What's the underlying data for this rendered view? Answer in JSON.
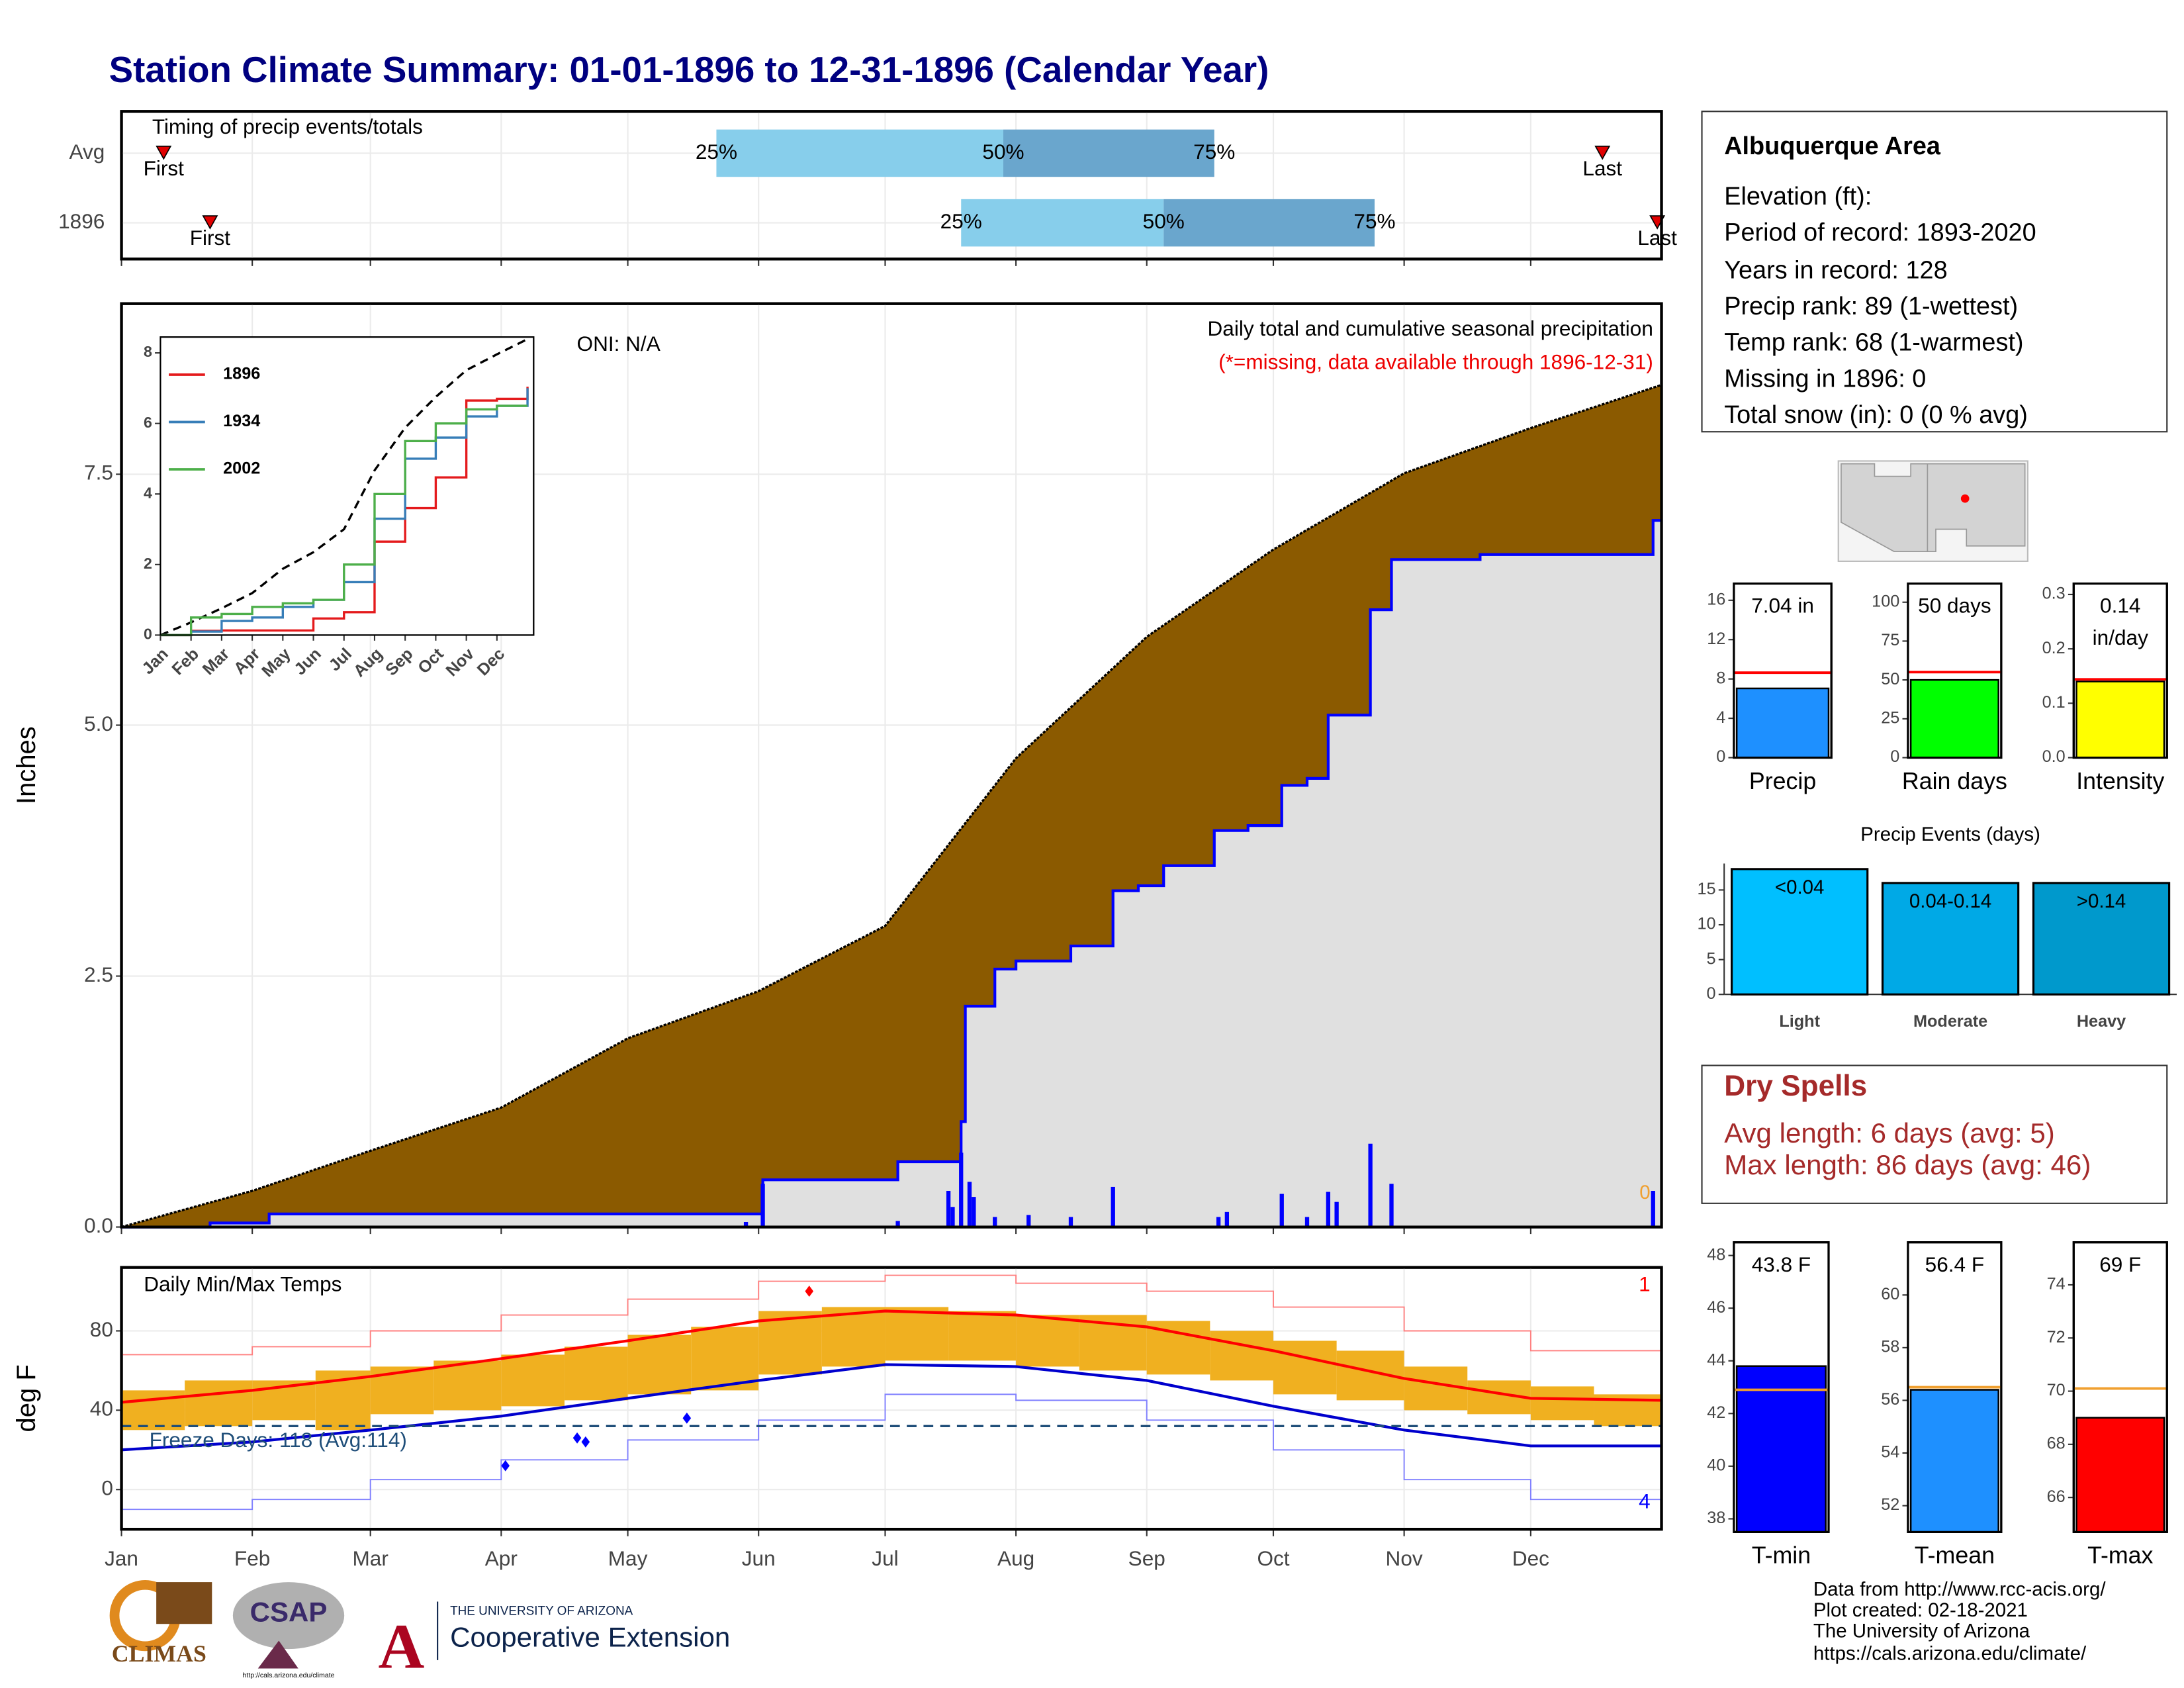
{
  "title": "Station Climate Summary: 01-01-1896 to 12-31-1896 (Calendar Year)",
  "chart_data": [
    {
      "type": "timing",
      "title": "Timing of precip events/totals",
      "xlim": [
        0,
        365
      ],
      "xticks": [
        0,
        31,
        59,
        90,
        120,
        151,
        181,
        212,
        243,
        273,
        304,
        334
      ],
      "marker_labels": [
        "First",
        "25%",
        "50%",
        "75%",
        "Last"
      ],
      "series": [
        {
          "name": "Avg",
          "values": [
            10,
            141,
            209,
            259,
            351
          ]
        },
        {
          "name": "1896",
          "values": [
            21,
            199,
            247,
            297,
            364
          ]
        }
      ],
      "colors": [
        "#87ceeb",
        "#6aa6cd"
      ],
      "marker_color": "#e00000"
    },
    {
      "type": "precip",
      "ylabel": "Inches",
      "xlim": [
        0,
        365
      ],
      "ylim": [
        0,
        9.2
      ],
      "xticks": [
        0,
        31,
        59,
        90,
        120,
        151,
        181,
        212,
        243,
        273,
        304,
        334
      ],
      "yticks": [
        {
          "value": 0,
          "label": "0.0"
        },
        {
          "value": 2.5,
          "label": "2.5"
        },
        {
          "value": 5,
          "label": "5.0"
        },
        {
          "value": 7.5,
          "label": "7.5"
        }
      ],
      "oni": "ONI: N/A",
      "subtitle": "Daily total and cumulative seasonal precipitation",
      "note": "(*=missing, data available through 1896-12-31)",
      "missing_days": 0,
      "average": {
        "x": [
          0,
          31,
          59,
          90,
          120,
          151,
          181,
          212,
          243,
          273,
          304,
          334,
          365
        ],
        "values": [
          0,
          0.36,
          0.76,
          1.19,
          1.88,
          2.35,
          3.0,
          4.67,
          5.88,
          6.75,
          7.51,
          7.96,
          8.39
        ],
        "color": "#8b5a00"
      },
      "cumulative": {
        "x": [
          0,
          21,
          35,
          148,
          152,
          184,
          199,
          200,
          207,
          212,
          225,
          235,
          241,
          247,
          259,
          267,
          273,
          275,
          281,
          286,
          296,
          301,
          322,
          363,
          365
        ],
        "values": [
          0,
          0.04,
          0.13,
          0.13,
          0.47,
          0.65,
          1.05,
          2.2,
          2.57,
          2.65,
          2.8,
          3.35,
          3.4,
          3.6,
          3.95,
          4.0,
          4.0,
          4.4,
          4.47,
          5.1,
          6.15,
          6.65,
          6.7,
          7.04,
          7.04
        ],
        "color": "#0000ff",
        "fill": "#e0e0e0"
      },
      "daily": {
        "x": [
          148,
          152,
          184,
          196,
          197,
          199,
          201,
          202,
          207,
          215,
          225,
          235,
          260,
          262,
          275,
          281,
          286,
          288,
          296,
          301,
          363
        ],
        "values": [
          0.05,
          0.43,
          0.06,
          0.36,
          0.2,
          0.74,
          0.45,
          0.3,
          0.1,
          0.12,
          0.1,
          0.4,
          0.1,
          0.15,
          0.33,
          0.1,
          0.35,
          0.25,
          0.83,
          0.43,
          0.36
        ],
        "color": "#0000ff"
      }
    },
    {
      "type": "line",
      "xlim": [
        0,
        12.2
      ],
      "ylim": [
        0,
        8.45
      ],
      "xticks": [
        {
          "value": 0,
          "label": "Jan"
        },
        {
          "value": 1,
          "label": "Feb"
        },
        {
          "value": 2,
          "label": "Mar"
        },
        {
          "value": 3,
          "label": "Apr"
        },
        {
          "value": 4,
          "label": "May"
        },
        {
          "value": 5,
          "label": "Jun"
        },
        {
          "value": 6,
          "label": "Jul"
        },
        {
          "value": 7,
          "label": "Aug"
        },
        {
          "value": 8,
          "label": "Sep"
        },
        {
          "value": 9,
          "label": "Oct"
        },
        {
          "value": 10,
          "label": "Nov"
        },
        {
          "value": 11,
          "label": "Dec"
        }
      ],
      "yticks": [
        0,
        2,
        4,
        6,
        8
      ],
      "x": [
        0,
        1,
        2,
        3,
        4,
        5,
        6,
        7,
        8,
        9,
        10,
        11,
        12
      ],
      "average": {
        "values": [
          0,
          0.36,
          0.76,
          1.19,
          1.88,
          2.35,
          3.0,
          4.67,
          5.88,
          6.75,
          7.51,
          7.96,
          8.39
        ],
        "color": "#000000"
      },
      "series": [
        {
          "name": "1896",
          "color": "#e41a1c",
          "values": [
            0,
            0.12,
            0.13,
            0.13,
            0.13,
            0.47,
            0.65,
            2.65,
            3.6,
            4.47,
            6.65,
            6.7,
            7.04
          ]
        },
        {
          "name": "1934",
          "color": "#377eb8",
          "values": [
            0,
            0.1,
            0.4,
            0.5,
            0.8,
            1.0,
            1.5,
            3.3,
            5.0,
            5.6,
            6.2,
            6.5,
            7.0
          ]
        },
        {
          "name": "2002",
          "color": "#4daf4a",
          "values": [
            0,
            0.5,
            0.6,
            0.8,
            0.9,
            1.0,
            2.0,
            4.0,
            5.5,
            6.0,
            6.4,
            6.5,
            6.5
          ]
        }
      ]
    },
    {
      "type": "temperature",
      "title": "Daily Min/Max Temps",
      "ylabel": "deg F",
      "xlim": [
        0,
        365
      ],
      "ylim": [
        -20,
        112
      ],
      "yticks": [
        0,
        40,
        80
      ],
      "xticks": [
        {
          "value": 0,
          "label": "Jan"
        },
        {
          "value": 31,
          "label": "Feb"
        },
        {
          "value": 59,
          "label": "Mar"
        },
        {
          "value": 90,
          "label": "Apr"
        },
        {
          "value": 120,
          "label": "May"
        },
        {
          "value": 151,
          "label": "Jun"
        },
        {
          "value": 181,
          "label": "Jul"
        },
        {
          "value": 212,
          "label": "Aug"
        },
        {
          "value": 243,
          "label": "Sep"
        },
        {
          "value": 273,
          "label": "Oct"
        },
        {
          "value": 304,
          "label": "Nov"
        },
        {
          "value": 334,
          "label": "Dec"
        }
      ],
      "x": [
        0,
        31,
        59,
        90,
        120,
        151,
        181,
        212,
        243,
        273,
        304,
        334,
        365
      ],
      "avg_max": {
        "values": [
          44,
          50,
          57,
          66,
          75,
          85,
          90,
          88,
          82,
          70,
          56,
          46,
          45
        ],
        "color": "#ff0000"
      },
      "avg_min": {
        "values": [
          20,
          24,
          30,
          37,
          46,
          55,
          63,
          62,
          55,
          42,
          30,
          22,
          22
        ],
        "color": "#0000cd"
      },
      "record_max": {
        "values": [
          68,
          72,
          80,
          88,
          96,
          105,
          108,
          104,
          100,
          92,
          80,
          70,
          68
        ],
        "color": "#ff8080"
      },
      "record_min": {
        "values": [
          -10,
          -5,
          5,
          15,
          25,
          35,
          48,
          45,
          35,
          20,
          5,
          -5,
          -10
        ],
        "color": "#8080ff"
      },
      "days": [
        0,
        15,
        31,
        46,
        59,
        74,
        90,
        105,
        120,
        135,
        151,
        166,
        181,
        196,
        212,
        227,
        243,
        258,
        273,
        288,
        304,
        319,
        334,
        349
      ],
      "lows": [
        30,
        32,
        35,
        30,
        38,
        40,
        42,
        45,
        48,
        50,
        58,
        62,
        65,
        65,
        62,
        60,
        58,
        55,
        48,
        45,
        40,
        38,
        35,
        32
      ],
      "highs": [
        50,
        55,
        55,
        60,
        62,
        65,
        68,
        72,
        78,
        82,
        90,
        92,
        92,
        90,
        88,
        88,
        85,
        80,
        75,
        70,
        62,
        55,
        52,
        48
      ],
      "bar_color": "#f0b020",
      "freeze_threshold": 32,
      "freeze_label": "Freeze Days: 118 (Avg:114)",
      "freeze_color": "#1f4e79",
      "record_highs": {
        "x": [
          163
        ],
        "values": [
          100
        ]
      },
      "record_lows": {
        "x": [
          91,
          108,
          110,
          134
        ],
        "values": [
          12,
          26,
          24,
          36
        ]
      },
      "record_high_count": 1,
      "record_low_count": 4
    },
    {
      "type": "stat-bar",
      "categories": [
        "Precip"
      ],
      "values": [
        7.04
      ],
      "value_labels": [
        "7.04 in"
      ],
      "average": 8.64,
      "ylim": [
        0,
        17.7
      ],
      "yticks": [
        0,
        4,
        8,
        12,
        16
      ],
      "color": "#1e90ff",
      "average_color": "#ff0000"
    },
    {
      "type": "stat-bar",
      "categories": [
        "Rain days"
      ],
      "values": [
        50
      ],
      "value_labels": [
        "50 days"
      ],
      "average": 55,
      "ylim": [
        0,
        112
      ],
      "yticks": [
        0,
        25,
        50,
        75,
        100
      ],
      "color": "#00ff00",
      "average_color": "#ff0000"
    },
    {
      "type": "stat-bar",
      "categories": [
        "Intensity"
      ],
      "values": [
        0.14
      ],
      "unit_label": "in/day",
      "average": 0.144,
      "ylim": [
        0,
        0.32
      ],
      "yticks": [
        {
          "value": 0,
          "label": "0.0"
        },
        {
          "value": 0.1,
          "label": "0.1"
        },
        {
          "value": 0.2,
          "label": "0.2"
        },
        {
          "value": 0.3,
          "label": "0.3"
        }
      ],
      "color": "#ffff00",
      "average_color": "#ff0000"
    },
    {
      "type": "bar",
      "title": "Precip Events (days)",
      "categories": [
        "Light",
        "Moderate",
        "Heavy"
      ],
      "bin_labels": [
        "<0.04",
        "0.04-0.14",
        ">0.14"
      ],
      "values": [
        18,
        16,
        16
      ],
      "colors": [
        "#00bfff",
        "#00a9e6",
        "#0099cc"
      ],
      "ylim": [
        0,
        18.8
      ],
      "yticks": [
        0,
        5,
        10,
        15
      ]
    },
    {
      "type": "stat-bar",
      "categories": [
        "T-min"
      ],
      "values": [
        43.8
      ],
      "value_labels": [
        "43.8 F"
      ],
      "average": 42.9,
      "ylim": [
        37.5,
        48.5
      ],
      "yticks": [
        38,
        40,
        42,
        44,
        46,
        48
      ],
      "color": "#0000ff",
      "average_color": "#f0a030"
    },
    {
      "type": "stat-bar",
      "categories": [
        "T-mean"
      ],
      "values": [
        56.4
      ],
      "value_labels": [
        "56.4 F"
      ],
      "average": 56.5,
      "ylim": [
        51,
        62
      ],
      "yticks": [
        52,
        54,
        56,
        58,
        60
      ],
      "color": "#1e90ff",
      "average_color": "#f0a030"
    },
    {
      "type": "stat-bar",
      "categories": [
        "T-max"
      ],
      "values": [
        69
      ],
      "value_labels": [
        "69 F"
      ],
      "average": 70.1,
      "ylim": [
        64.7,
        75.6
      ],
      "yticks": [
        66,
        68,
        70,
        72,
        74
      ],
      "color": "#ff0000",
      "average_color": "#f0a030"
    }
  ],
  "info": {
    "title": "Albuquerque Area",
    "lines": [
      "Elevation (ft):",
      "Period of record: 1893-2020",
      "Years in record: 128",
      "Precip rank: 89 (1-wettest)",
      "Temp rank: 68 (1-warmest)",
      "Missing in 1896: 0",
      "Total snow (in): 0 (0 % avg)"
    ]
  },
  "dry_spells": {
    "title": "Dry Spells",
    "lines": [
      "Avg length: 6 days (avg: 5)",
      "Max length: 86 days (avg: 46)"
    ]
  },
  "footer": {
    "credits": [
      "Data from http://www.rcc-acis.org/",
      "Plot created: 02-18-2021",
      "The University of Arizona",
      "https://cals.arizona.edu/climate/"
    ]
  },
  "logos": {
    "climas": "CLIMAS",
    "csap": "CSAP",
    "csap_url": "http://cals.arizona.edu/climate",
    "university": "THE UNIVERSITY OF ARIZONA",
    "extension": "Cooperative Extension"
  }
}
